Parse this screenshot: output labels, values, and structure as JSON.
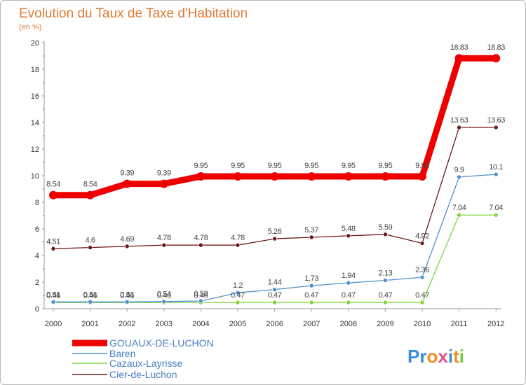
{
  "chart_data": {
    "type": "line",
    "title": "Evolution du Taux de Taxe d'Habitation",
    "subtitle": "(en %)",
    "x": [
      "2000",
      "2001",
      "2002",
      "2003",
      "2004",
      "2005",
      "2006",
      "2007",
      "2008",
      "2009",
      "2010",
      "2011",
      "2012"
    ],
    "ylim": [
      0,
      20
    ],
    "yticks": [
      0,
      2,
      4,
      6,
      8,
      10,
      12,
      14,
      16,
      18,
      20
    ],
    "grid": false,
    "legend": "bottom-left",
    "series": [
      {
        "name": "GOUAUX-DE-LUCHON",
        "color": "#ee0000",
        "values": [
          8.54,
          8.54,
          9.39,
          9.39,
          9.95,
          9.95,
          9.95,
          9.95,
          9.95,
          9.95,
          9.95,
          18.83,
          18.83
        ],
        "labels": [
          "8.54",
          "8.54",
          "9.39",
          "9.39",
          "9.95",
          "9.95",
          "9.95",
          "9.95",
          "9.95",
          "9.95",
          "9.95",
          "18.83",
          "18.83"
        ]
      },
      {
        "name": "Baren",
        "color": "#4f8fd0",
        "values": [
          0.51,
          0.51,
          0.51,
          0.54,
          0.58,
          1.2,
          1.44,
          1.73,
          1.94,
          2.13,
          2.36,
          9.9,
          10.1
        ],
        "labels": [
          "0.51",
          "0.51",
          "0.51",
          "0.54",
          "0.58",
          "1.2",
          "1.44",
          "1.73",
          "1.94",
          "2.13",
          "2.36",
          "9.9",
          "10.1"
        ]
      },
      {
        "name": "Cazaux-Layrisse",
        "color": "#7ed63c",
        "values": [
          0.46,
          0.46,
          0.46,
          0.46,
          0.46,
          0.47,
          0.47,
          0.47,
          0.47,
          0.47,
          0.47,
          7.04,
          7.04
        ],
        "labels": [
          "0.46",
          "0.46",
          "0.46",
          "0.46",
          "0.46",
          "0.47",
          "0.47",
          "0.47",
          "0.47",
          "0.47",
          "0.47",
          "7.04",
          "7.04"
        ]
      },
      {
        "name": "Cier-de-Luchon",
        "color": "#6e1a1a",
        "values": [
          4.51,
          4.6,
          4.69,
          4.78,
          4.78,
          4.78,
          5.26,
          5.37,
          5.48,
          5.59,
          4.92,
          13.63,
          13.63
        ],
        "labels": [
          "4.51",
          "4.6",
          "4.69",
          "4.78",
          "4.78",
          "4.78",
          "5.26",
          "5.37",
          "5.48",
          "5.59",
          "4.92",
          "13.63",
          "13.63"
        ]
      }
    ]
  },
  "logo": {
    "text": "Proxiti",
    "letter_colors": [
      "#3a8fd8",
      "#3a8fd8",
      "#f09020",
      "#e05090",
      "#3a8fd8",
      "#f09020",
      "#7ac943"
    ]
  }
}
